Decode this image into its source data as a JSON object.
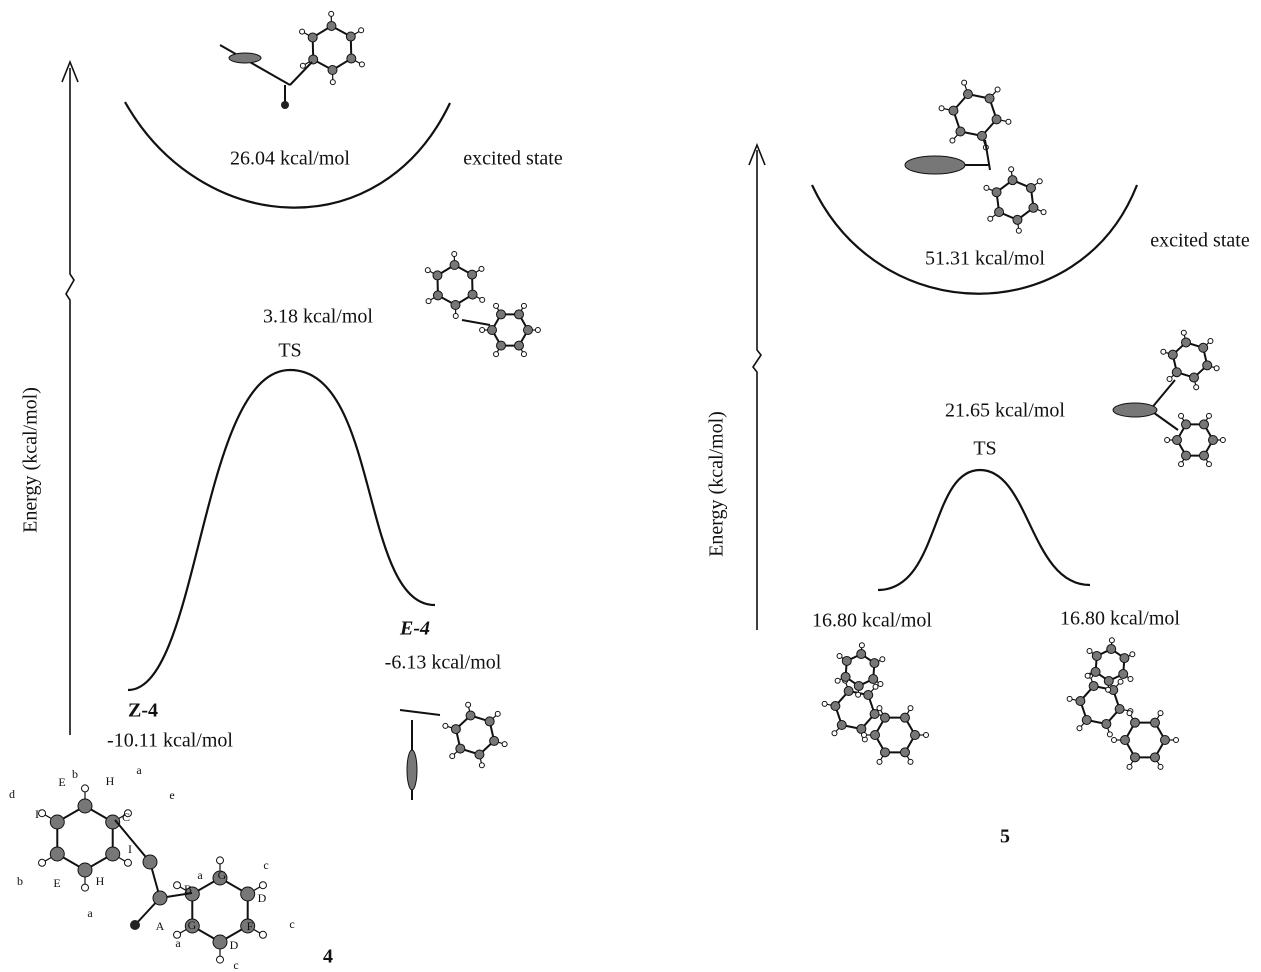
{
  "panels": [
    {
      "axis_label": "Energy (kcal/mol)",
      "excited": {
        "energy": "26.04 kcal/mol",
        "label": "excited state"
      },
      "ts": {
        "energy": "3.18 kcal/mol",
        "label": "TS"
      },
      "left_min": {
        "name": "Z-4",
        "energy": "-10.11 kcal/mol"
      },
      "right_min": {
        "name": "E-4",
        "energy": "-6.13 kcal/mol"
      },
      "compound": "4",
      "atom_labels": [
        "b",
        "E",
        "H",
        "a",
        "d",
        "I",
        "C",
        "e",
        "b",
        "E",
        "H",
        "I",
        "a",
        "A",
        "B",
        "a",
        "G",
        "c",
        "D",
        "G",
        "F",
        "c",
        "a",
        "D",
        "c"
      ]
    },
    {
      "axis_label": "Energy (kcal/mol)",
      "excited": {
        "energy": "51.31 kcal/mol",
        "label": "excited state"
      },
      "ts": {
        "energy": "21.65 kcal/mol",
        "label": "TS"
      },
      "left_min": {
        "energy": "16.80 kcal/mol"
      },
      "right_min": {
        "energy": "16.80 kcal/mol"
      },
      "compound": "5"
    }
  ]
}
